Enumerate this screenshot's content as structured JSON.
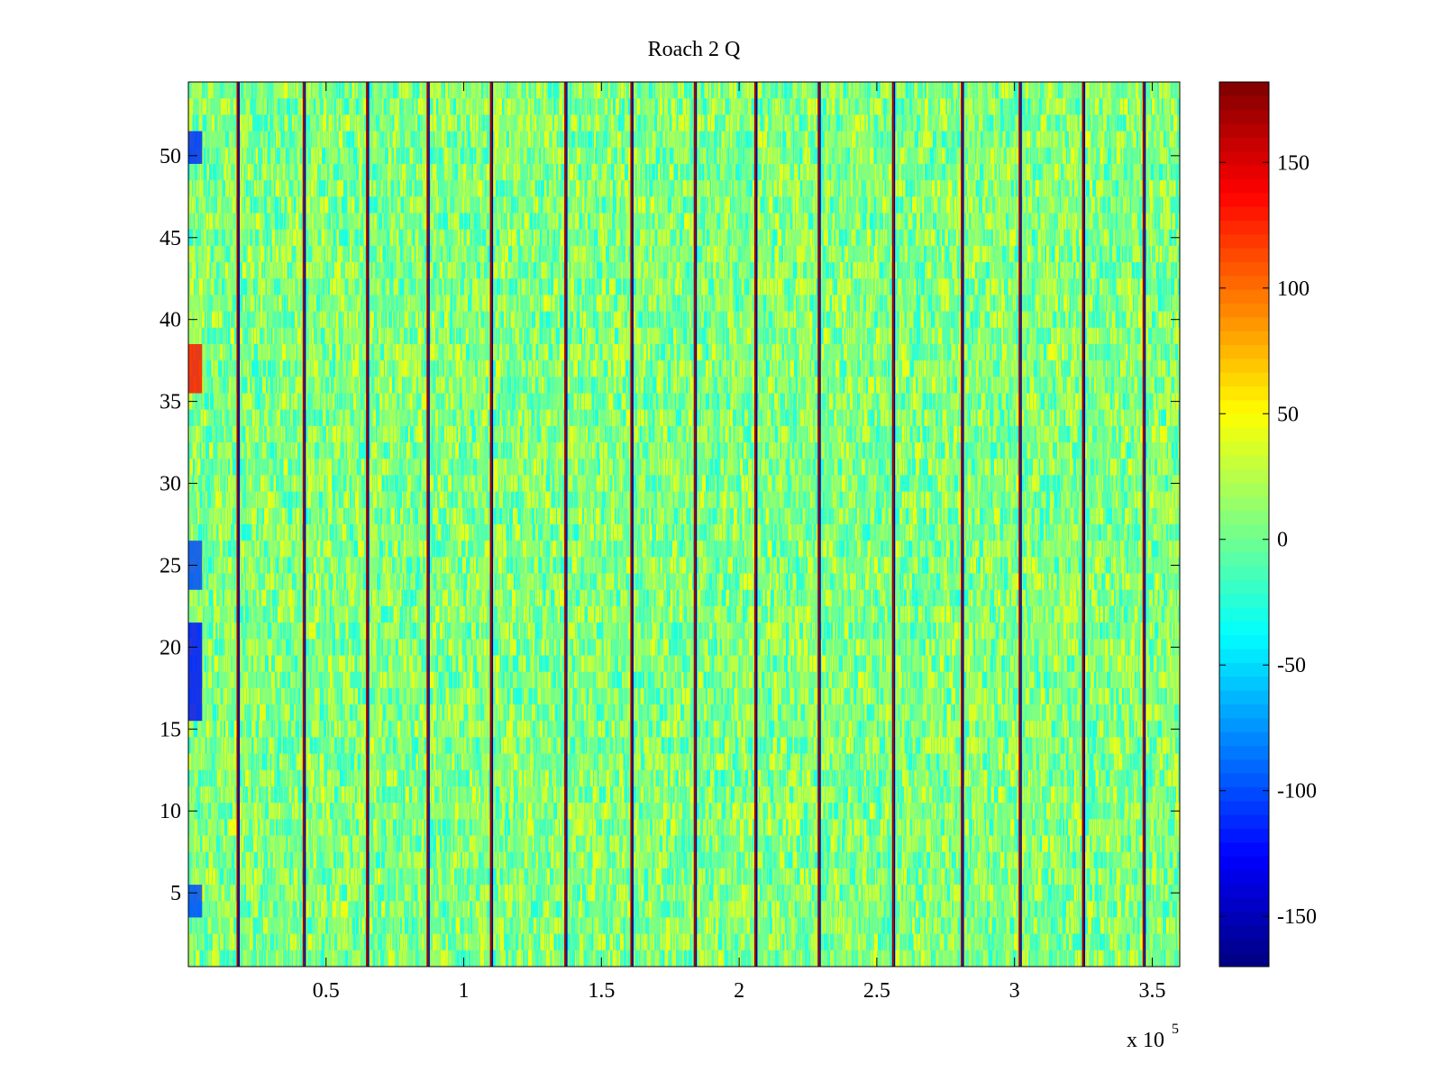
{
  "chart_data": {
    "type": "heatmap",
    "title": "Roach 2 Q",
    "xlabel": "",
    "ylabel": "",
    "x_range": [
      0,
      360000
    ],
    "y_range": [
      0.5,
      54.5
    ],
    "x_ticks": [
      50000,
      100000,
      150000,
      200000,
      250000,
      300000,
      350000
    ],
    "x_tick_labels": [
      "0.5",
      "1",
      "1.5",
      "2",
      "2.5",
      "3",
      "3.5"
    ],
    "x_exponent_label": "x 10",
    "x_exponent_power": "5",
    "y_ticks": [
      5,
      10,
      15,
      20,
      25,
      30,
      35,
      40,
      45,
      50
    ],
    "y_tick_labels": [
      "5",
      "10",
      "15",
      "20",
      "25",
      "30",
      "35",
      "40",
      "45",
      "50"
    ],
    "rows": 54,
    "colormap": "jet",
    "color_range": [
      -170,
      182
    ],
    "colorbar_ticks": [
      150,
      100,
      50,
      0,
      -50,
      -100,
      -150
    ],
    "colorbar_tick_labels": [
      "150",
      "100",
      "50",
      "0",
      "-50",
      "-100",
      "-150"
    ],
    "background_value_range": [
      -30,
      45
    ],
    "stripe_x_positions": [
      18000,
      42000,
      65000,
      87000,
      110000,
      137000,
      161000,
      184000,
      206000,
      229000,
      256000,
      281000,
      302000,
      325000,
      347000
    ],
    "stripe_values": [
      170,
      -160
    ],
    "high_patch": {
      "x_range": [
        0,
        5000
      ],
      "y_range": [
        35.5,
        38.5
      ],
      "value": 130
    },
    "low_patches": [
      {
        "x_range": [
          0,
          5000
        ],
        "y_range": [
          49.5,
          51.5
        ],
        "value": -110
      },
      {
        "x_range": [
          0,
          5000
        ],
        "y_range": [
          23.5,
          26.5
        ],
        "value": -100
      },
      {
        "x_range": [
          0,
          5000
        ],
        "y_range": [
          15.5,
          21.5
        ],
        "value": -120
      },
      {
        "x_range": [
          0,
          5000
        ],
        "y_range": [
          3.5,
          5.5
        ],
        "value": -100
      }
    ],
    "grid": false,
    "legend": "colorbar-right"
  }
}
